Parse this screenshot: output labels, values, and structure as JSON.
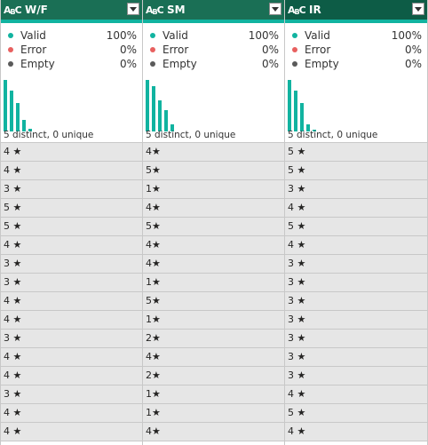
{
  "columns": [
    {
      "name": "W/F",
      "type_icon": "text-type-icon",
      "valid_label": "Valid",
      "valid_pct": "100%",
      "error_label": "Error",
      "error_pct": "0%",
      "empty_label": "Empty",
      "empty_pct": "0%",
      "distinct_text": "5 distinct, 0 unique",
      "histogram": [
        1.0,
        0.8,
        0.55,
        0.22,
        0.06
      ],
      "rows": [
        "4 ★",
        "4 ★",
        "3 ★",
        "5 ★",
        "5 ★",
        "4 ★",
        "3 ★",
        "3 ★",
        "4 ★",
        "4 ★",
        "3 ★",
        "4 ★",
        "4 ★",
        "3 ★",
        "4 ★",
        "4 ★"
      ]
    },
    {
      "name": "SM",
      "type_icon": "text-type-icon",
      "valid_label": "Valid",
      "valid_pct": "100%",
      "error_label": "Error",
      "error_pct": "0%",
      "empty_label": "Empty",
      "empty_pct": "0%",
      "distinct_text": "5 distinct, 0 unique",
      "histogram": [
        1.0,
        0.88,
        0.6,
        0.42,
        0.14
      ],
      "rows": [
        "4★",
        "5★",
        "1★",
        "4★",
        "5★",
        "4★",
        "4★",
        "1★",
        "5★",
        "1★",
        "2★",
        "4★",
        "2★",
        "1★",
        "1★",
        "4★"
      ]
    },
    {
      "name": "IR",
      "type_icon": "text-type-icon",
      "valid_label": "Valid",
      "valid_pct": "100%",
      "error_label": "Error",
      "error_pct": "0%",
      "empty_label": "Empty",
      "empty_pct": "0%",
      "distinct_text": "5 distinct, 0 unique",
      "histogram": [
        1.0,
        0.8,
        0.55,
        0.14,
        0.04
      ],
      "rows": [
        "5 ★",
        "5 ★",
        "3 ★",
        "4 ★",
        "5 ★",
        "4 ★",
        "3 ★",
        "3 ★",
        "3 ★",
        "3 ★",
        "3 ★",
        "3 ★",
        "3 ★",
        "4 ★",
        "5 ★",
        "4 ★"
      ]
    }
  ]
}
